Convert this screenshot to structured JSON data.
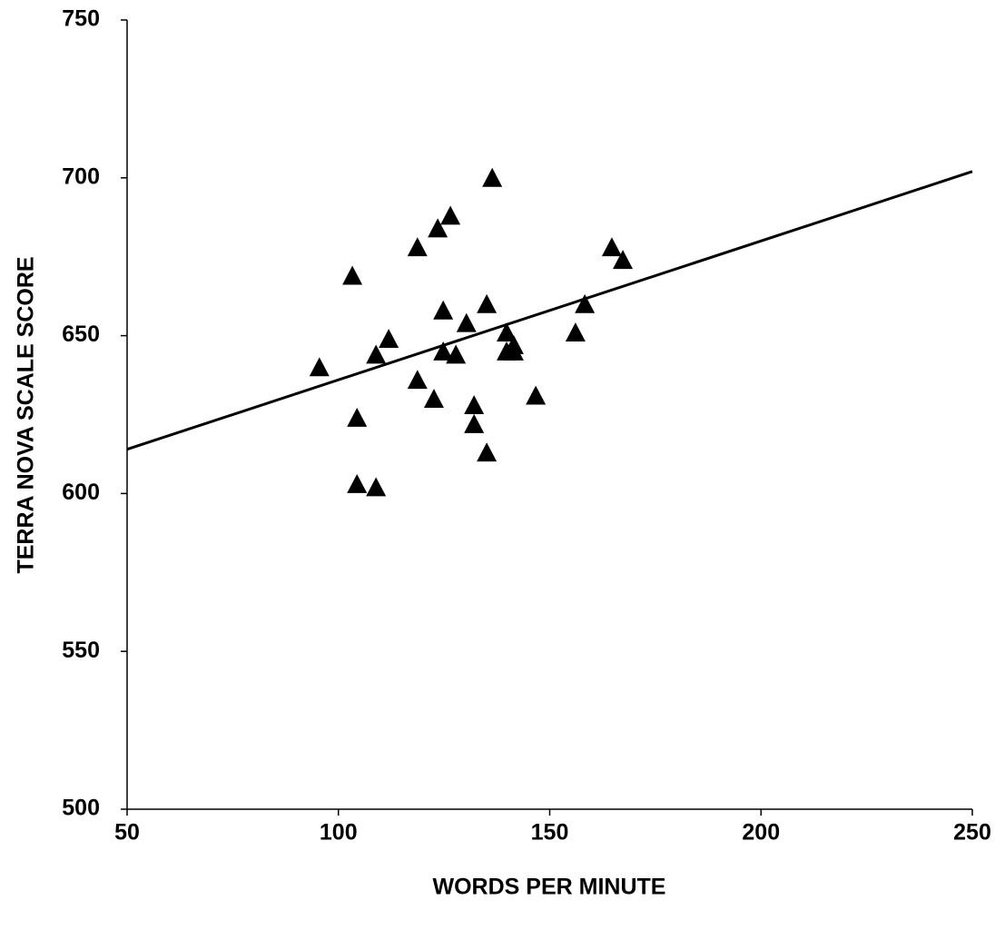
{
  "chart_data": {
    "type": "scatter",
    "xlabel": "WORDS PER MINUTE",
    "ylabel": "TERRA NOVA SCALE SCORE",
    "xlim": [
      50,
      250
    ],
    "xticks": [
      50,
      100,
      150,
      200,
      250
    ],
    "ylim": [
      500,
      750
    ],
    "yticks": [
      500,
      550,
      600,
      650,
      700,
      750
    ],
    "grid": false,
    "color": "#000000",
    "x": [
      95.5,
      103.3,
      104.4,
      104.4,
      108.9,
      108.9,
      111.9,
      118.7,
      118.7,
      123.5,
      122.6,
      126.5,
      124.8,
      124.8,
      127.8,
      130.3,
      132.1,
      132.1,
      135.1,
      135.1,
      136.4,
      139.8,
      139.8,
      141.5,
      141.5,
      146.7,
      156.1,
      158.3,
      164.7,
      167.3
    ],
    "y": [
      640,
      669,
      624,
      603,
      644,
      602,
      649,
      678,
      636,
      684,
      630,
      688,
      658,
      645,
      644,
      654,
      628,
      622,
      660,
      613,
      700,
      651,
      645,
      647,
      645,
      631,
      651,
      660,
      678,
      674
    ],
    "trendline": {
      "x": [
        50,
        250
      ],
      "y": [
        614,
        702
      ]
    }
  }
}
